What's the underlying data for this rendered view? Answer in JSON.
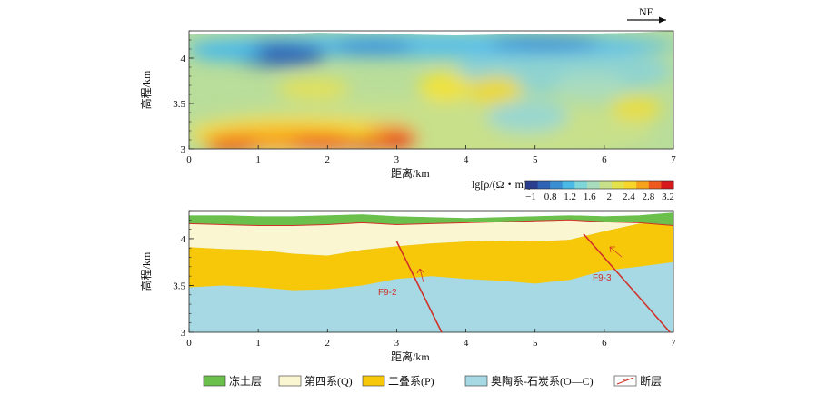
{
  "direction_label": "NE",
  "top_chart": {
    "type": "heatmap",
    "xlabel": "距离/km",
    "ylabel": "高程/km",
    "xlim": [
      0,
      7
    ],
    "ylim": [
      3,
      4.3
    ],
    "xticks": [
      "0",
      "1",
      "2",
      "3",
      "4",
      "5",
      "6",
      "7"
    ],
    "yticks": [
      "3",
      "3.5",
      "4"
    ],
    "colorbar": {
      "title": "lg[ρ/(Ω・m)]",
      "ticks": [
        "−1",
        "0.8",
        "1.2",
        "1.6",
        "2",
        "2.4",
        "2.8",
        "3.2"
      ],
      "colors": [
        "#2b3d8f",
        "#2f63b5",
        "#3a8fd3",
        "#4ab9e6",
        "#7fd6d9",
        "#a8dcbc",
        "#c8e08a",
        "#e4e24a",
        "#f7d52a",
        "#f7a21b",
        "#ee5a1e",
        "#d7191c"
      ]
    }
  },
  "chart_data": [
    {
      "type": "heatmap",
      "title": "",
      "xlabel": "距离/km",
      "ylabel": "高程/km",
      "xlim": [
        0,
        7
      ],
      "ylim": [
        3,
        4.3
      ],
      "value_label": "lg[ρ/(Ω・m)]",
      "value_range": [
        -1,
        3.2
      ],
      "anomalies": [
        {
          "x": 1.3,
          "y": 4.05,
          "value": 0.9
        },
        {
          "x": 2.8,
          "y": 4.1,
          "value": 1.0
        },
        {
          "x": 5.2,
          "y": 4.15,
          "value": 1.1
        },
        {
          "x": 1.2,
          "y": 3.05,
          "value": 3.0
        },
        {
          "x": 2.3,
          "y": 3.1,
          "value": 3.0
        },
        {
          "x": 3.0,
          "y": 3.15,
          "value": 3.2
        },
        {
          "x": 3.7,
          "y": 3.7,
          "value": 2.6
        },
        {
          "x": 4.5,
          "y": 3.65,
          "value": 2.6
        },
        {
          "x": 5.0,
          "y": 3.4,
          "value": 1.6
        },
        {
          "x": 6.5,
          "y": 3.4,
          "value": 2.0
        }
      ]
    },
    {
      "type": "area",
      "title": "",
      "xlabel": "距离/km",
      "ylabel": "高程/km",
      "xlim": [
        0,
        7
      ],
      "ylim": [
        3,
        4.3
      ],
      "x": [
        0,
        0.5,
        1,
        1.5,
        2,
        2.5,
        3,
        3.5,
        4,
        4.5,
        5,
        5.5,
        6,
        6.5,
        7
      ],
      "series": [
        {
          "name": "冻土层",
          "top": [
            4.25,
            4.25,
            4.24,
            4.24,
            4.25,
            4.26,
            4.24,
            4.23,
            4.22,
            4.23,
            4.24,
            4.25,
            4.24,
            4.25,
            4.28
          ]
        },
        {
          "name": "第四系(Q)",
          "top": [
            4.16,
            4.15,
            4.14,
            4.14,
            4.15,
            4.17,
            4.15,
            4.16,
            4.17,
            4.18,
            4.19,
            4.2,
            4.18,
            4.17,
            4.14
          ]
        },
        {
          "name": "二叠系(P)",
          "top": [
            3.91,
            3.89,
            3.88,
            3.84,
            3.82,
            3.88,
            3.92,
            3.95,
            3.97,
            3.98,
            3.97,
            3.99,
            4.08,
            4.16,
            4.18
          ]
        },
        {
          "name": "奥陶系-石炭系(O—C)",
          "top": [
            3.48,
            3.5,
            3.48,
            3.45,
            3.46,
            3.5,
            3.57,
            3.6,
            3.57,
            3.55,
            3.52,
            3.56,
            3.66,
            3.7,
            3.75
          ]
        }
      ],
      "faults": [
        {
          "name": "F9-2",
          "from": [
            3.0,
            3.97
          ],
          "to": [
            3.65,
            3.0
          ]
        },
        {
          "name": "F9-3",
          "from": [
            5.7,
            4.05
          ],
          "to": [
            6.95,
            3.0
          ]
        }
      ]
    }
  ],
  "bottom_chart": {
    "xlabel": "距离/km",
    "ylabel": "高程/km",
    "xticks": [
      "0",
      "1",
      "2",
      "3",
      "4",
      "5",
      "6",
      "7"
    ],
    "yticks": [
      "3",
      "3.5",
      "4"
    ]
  },
  "legend": {
    "items": [
      {
        "label": "冻土层",
        "color": "#6bbf4b"
      },
      {
        "label": "第四系(Q)",
        "color": "#fbf6d2"
      },
      {
        "label": "二叠系(P)",
        "color": "#f7c80a"
      },
      {
        "label": "奥陶系-石炭系(O—C)",
        "color": "#a6d9e3"
      },
      {
        "label": "断层",
        "color": "#d0312a"
      }
    ]
  },
  "faults": {
    "f1": "F9-2",
    "f2": "F9-3"
  }
}
